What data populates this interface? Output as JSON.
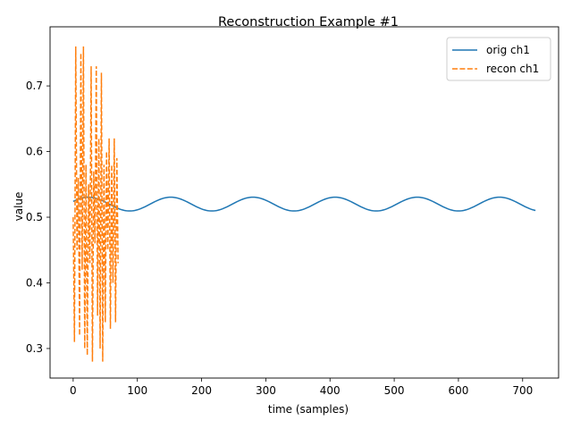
{
  "chart_data": {
    "type": "line",
    "title": "Reconstruction Example #1",
    "xlabel": "time (samples)",
    "ylabel": "value",
    "xlim": [
      -36,
      756
    ],
    "ylim": [
      0.255,
      0.79
    ],
    "xticks": [
      0,
      100,
      200,
      300,
      400,
      500,
      600,
      700
    ],
    "yticks": [
      0.3,
      0.4,
      0.5,
      0.6,
      0.7
    ],
    "ytick_labels": [
      "0.3",
      "0.4",
      "0.5",
      "0.6",
      "0.7"
    ],
    "grid": false,
    "legend_position": "top-right",
    "series": [
      {
        "name": "orig ch1",
        "color": "#1f77b4",
        "style": "solid",
        "sine": {
          "x_start": 0,
          "x_end": 720,
          "center": 0.52,
          "amplitude": 0.0105,
          "period": 128,
          "phase_peak_x": 24
        }
      },
      {
        "name": "recon ch1",
        "color": "#ff7f0e",
        "style": "dashed",
        "x": [
          0,
          2,
          4,
          6,
          8,
          10,
          12,
          14,
          16,
          18,
          20,
          22,
          24,
          26,
          28,
          30,
          32,
          34,
          36,
          38,
          40,
          42,
          44,
          46,
          48,
          50,
          52,
          54,
          56,
          58,
          60,
          62,
          64,
          66,
          68,
          70
        ],
        "y": [
          0.5,
          0.31,
          0.76,
          0.45,
          0.56,
          0.32,
          0.75,
          0.42,
          0.76,
          0.3,
          0.58,
          0.29,
          0.55,
          0.43,
          0.73,
          0.28,
          0.57,
          0.46,
          0.73,
          0.35,
          0.62,
          0.3,
          0.72,
          0.28,
          0.58,
          0.34,
          0.6,
          0.45,
          0.62,
          0.33,
          0.58,
          0.4,
          0.62,
          0.34,
          0.59,
          0.43
        ]
      }
    ]
  }
}
